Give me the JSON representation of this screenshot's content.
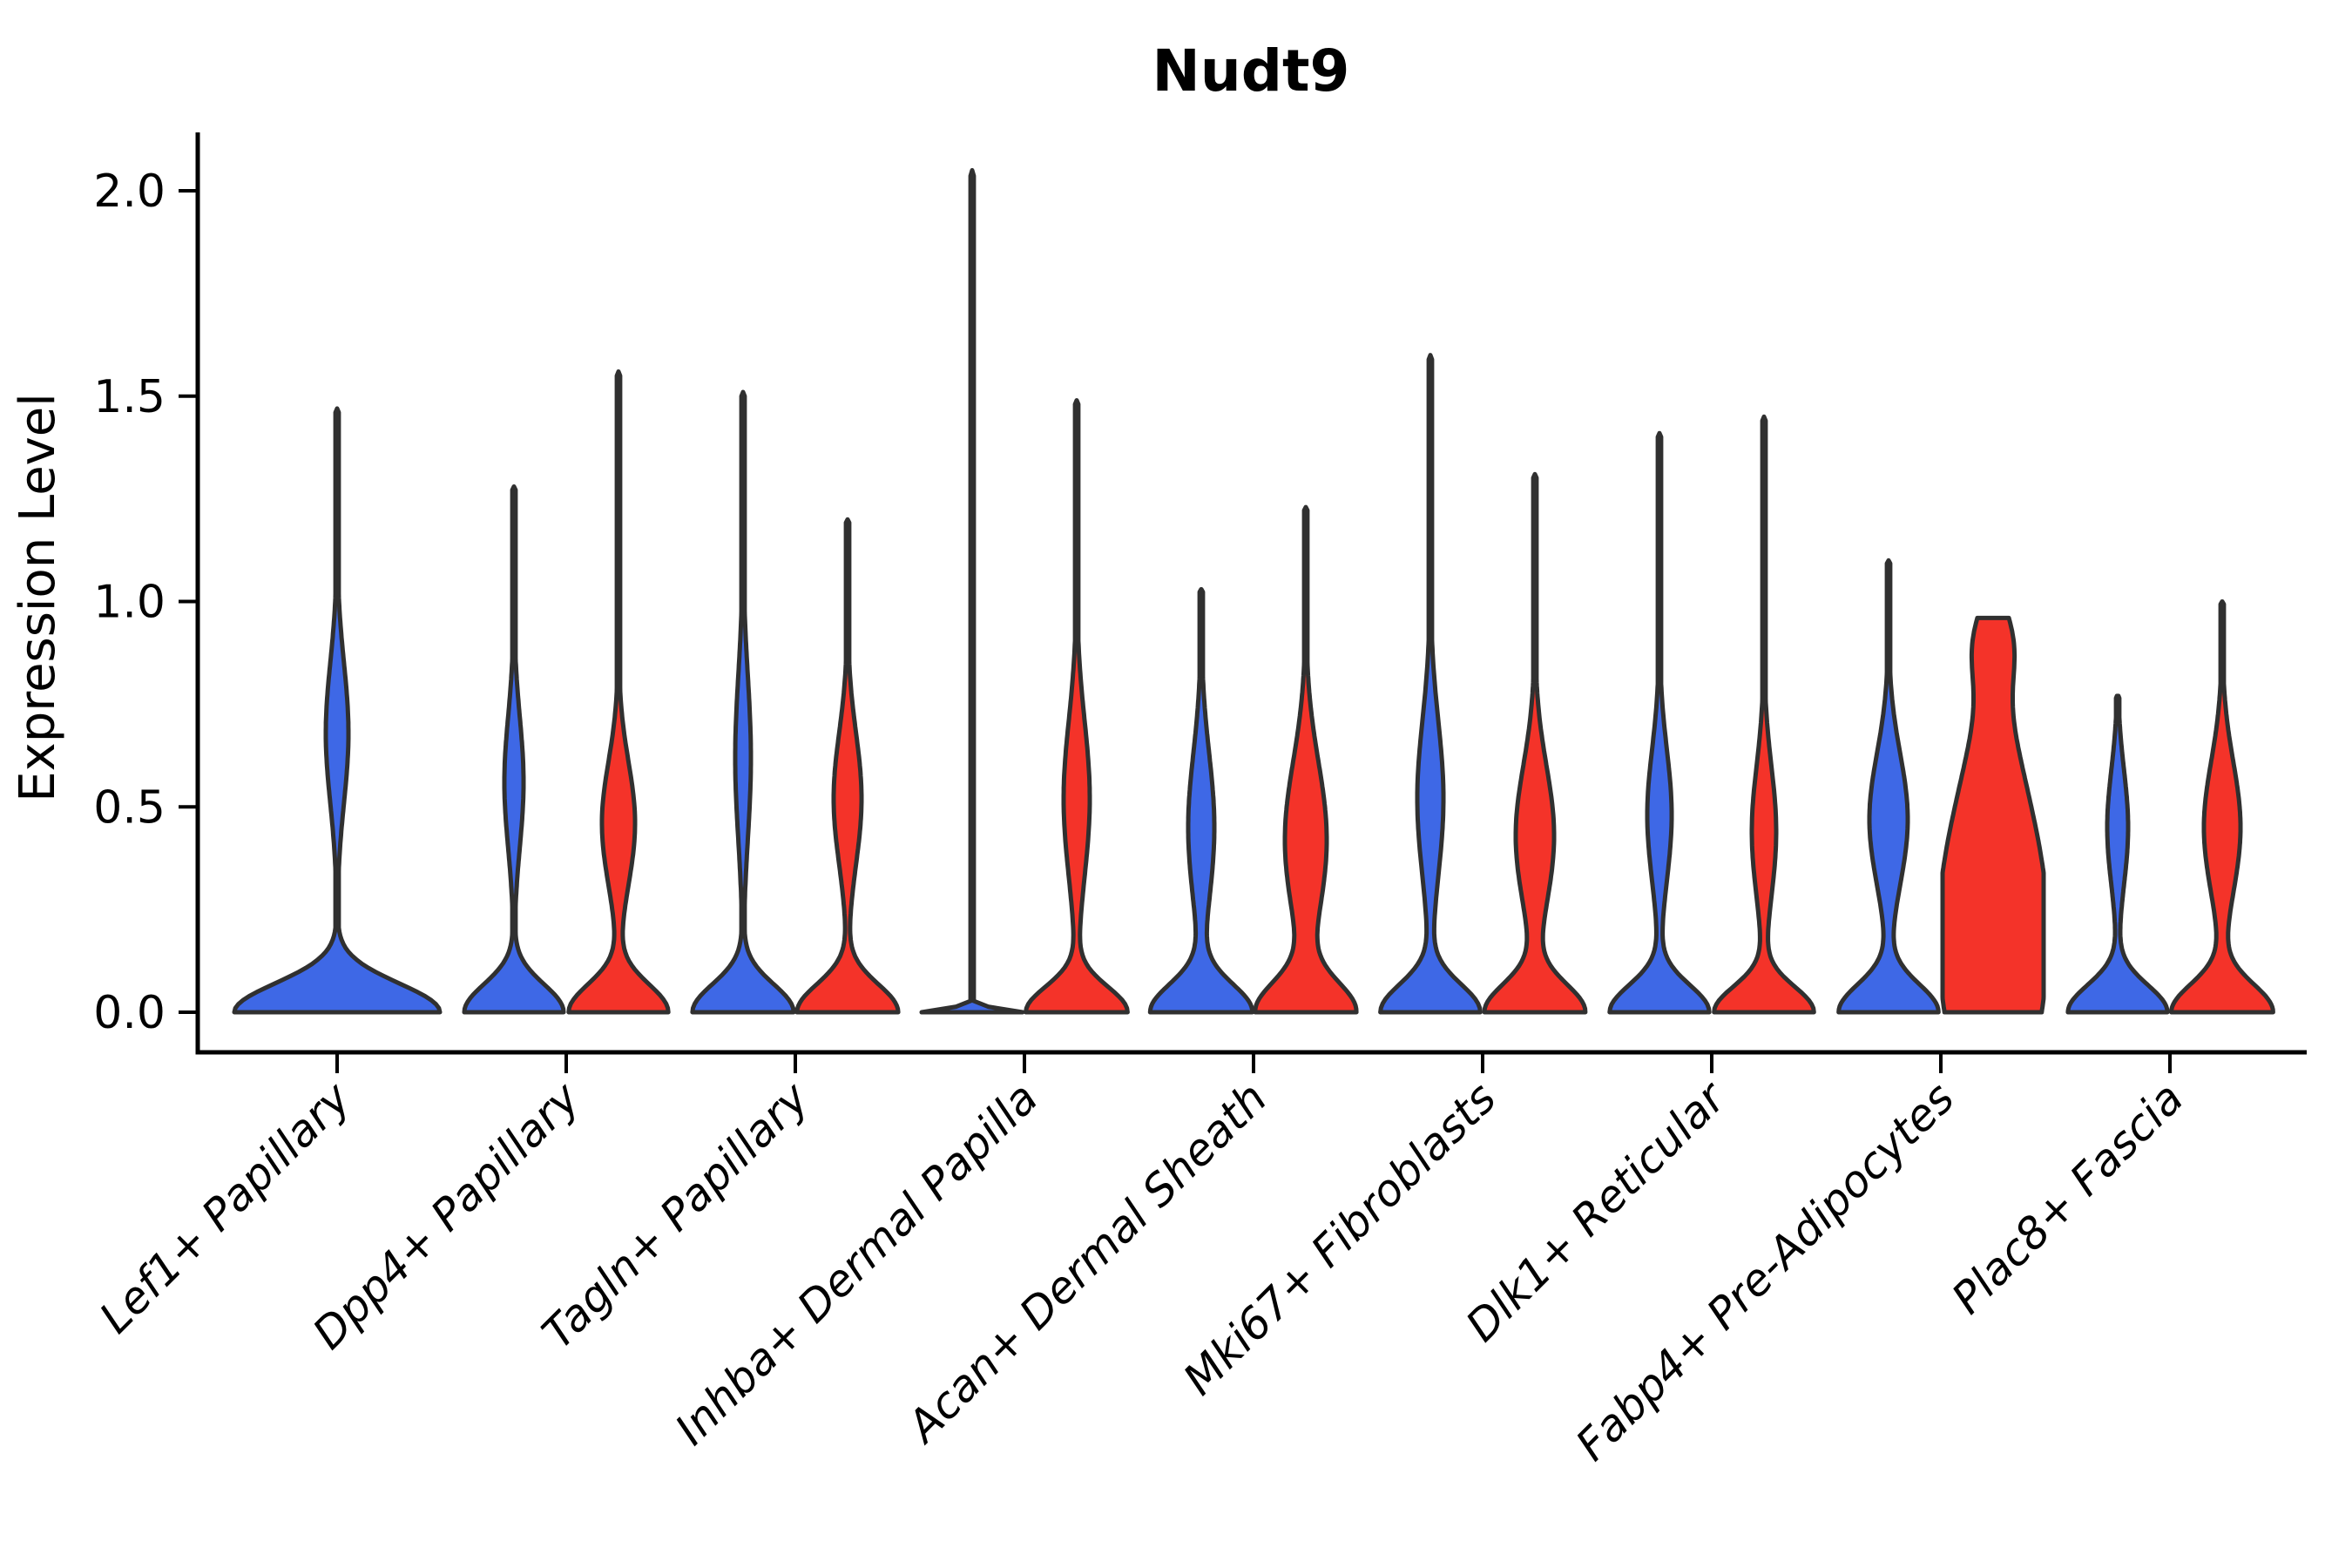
{
  "title": "Nudt9",
  "y_axis": {
    "label": "Expression Level",
    "tick_labels": [
      "0.0",
      "0.5",
      "1.0",
      "1.5",
      "2.0"
    ],
    "tick_values": [
      0.0,
      0.5,
      1.0,
      1.5,
      2.0
    ]
  },
  "x_axis": {
    "categories": [
      "Lef1+ Papillary",
      "Dpp4+ Papillary",
      "Tagln+ Papillary",
      "Inhba+ Dermal Papilla",
      "Acan+ Dermal Sheath",
      "Mki67+ Fibroblasts",
      "Dlk1+ Reticular",
      "Fabp4+ Pre-Adipocytes",
      "Plac8+ Fascia"
    ]
  },
  "colors": {
    "blue_series": "#3E68E6",
    "red_series": "#F43329",
    "outline": "#303030",
    "axis": "#000000",
    "background": "#ffffff"
  },
  "chart_data": {
    "type": "violin",
    "title": "Nudt9",
    "xlabel": "",
    "ylabel": "Expression Level",
    "ylim": [
      0,
      2.08
    ],
    "grid": false,
    "legend_position": "none",
    "categories": [
      "Lef1+ Papillary",
      "Dpp4+ Papillary",
      "Tagln+ Papillary",
      "Inhba+ Dermal Papilla",
      "Acan+ Dermal Sheath",
      "Mki67+ Fibroblasts",
      "Dlk1+ Reticular",
      "Fabp4+ Pre-Adipocytes",
      "Plac8+ Fascia"
    ],
    "series": [
      {
        "name": "blue",
        "color": "#3E68E6"
      },
      {
        "name": "red",
        "color": "#F43329"
      }
    ],
    "violins": [
      {
        "cat_index": 0,
        "category": "Lef1+ Papillary",
        "series": "blue",
        "x_offset": 0,
        "max_expression": 1.47,
        "mode_expression": 0.68,
        "zero_inflated": true,
        "bumps": [
          [
            0,
            118,
            0.07
          ],
          [
            0.68,
            13,
            0.17
          ]
        ],
        "flat_top": false
      },
      {
        "cat_index": 1,
        "category": "Dpp4+ Papillary",
        "series": "blue",
        "x_offset": -60,
        "max_expression": 1.28,
        "mode_expression": 0.56,
        "zero_inflated": true,
        "bumps": [
          [
            0,
            57,
            0.068
          ],
          [
            0.56,
            11,
            0.16
          ]
        ],
        "flat_top": false
      },
      {
        "cat_index": 1,
        "category": "Dpp4+ Papillary",
        "series": "red",
        "x_offset": 60,
        "max_expression": 1.56,
        "mode_expression": 0.46,
        "zero_inflated": true,
        "bumps": [
          [
            0,
            57,
            0.068
          ],
          [
            0.46,
            19,
            0.15
          ]
        ],
        "flat_top": false
      },
      {
        "cat_index": 2,
        "category": "Tagln+ Papillary",
        "series": "blue",
        "x_offset": -60,
        "max_expression": 1.51,
        "mode_expression": 0.62,
        "zero_inflated": true,
        "bumps": [
          [
            0,
            58,
            0.068
          ],
          [
            0.62,
            9,
            0.2
          ]
        ],
        "flat_top": false
      },
      {
        "cat_index": 2,
        "category": "Tagln+ Papillary",
        "series": "red",
        "x_offset": 60,
        "max_expression": 1.2,
        "mode_expression": 0.52,
        "zero_inflated": true,
        "bumps": [
          [
            0,
            58,
            0.068
          ],
          [
            0.52,
            16,
            0.16
          ]
        ],
        "flat_top": false
      },
      {
        "cat_index": 3,
        "category": "Inhba+ Dermal Papilla",
        "series": "blue",
        "x_offset": -60,
        "max_expression": 2.05,
        "mode_expression": 0.0,
        "zero_inflated": true,
        "degenerate_spike": true,
        "bumps": [
          [
            0,
            58,
            0.009
          ]
        ],
        "flat_top": false
      },
      {
        "cat_index": 3,
        "category": "Inhba+ Dermal Papilla",
        "series": "red",
        "x_offset": 60,
        "max_expression": 1.49,
        "mode_expression": 0.52,
        "zero_inflated": true,
        "bumps": [
          [
            0,
            58,
            0.062
          ],
          [
            0.52,
            15,
            0.19
          ]
        ],
        "flat_top": false
      },
      {
        "cat_index": 4,
        "category": "Acan+ Dermal Sheath",
        "series": "blue",
        "x_offset": -60,
        "max_expression": 1.03,
        "mode_expression": 0.45,
        "zero_inflated": true,
        "bumps": [
          [
            0,
            58,
            0.068
          ],
          [
            0.45,
            15,
            0.18
          ]
        ],
        "flat_top": false
      },
      {
        "cat_index": 4,
        "category": "Acan+ Dermal Sheath",
        "series": "red",
        "x_offset": 60,
        "max_expression": 1.23,
        "mode_expression": 0.42,
        "zero_inflated": true,
        "bumps": [
          [
            0,
            56,
            0.072
          ],
          [
            0.42,
            24,
            0.19
          ]
        ],
        "flat_top": false
      },
      {
        "cat_index": 5,
        "category": "Mki67+ Fibroblasts",
        "series": "blue",
        "x_offset": -60,
        "max_expression": 1.6,
        "mode_expression": 0.52,
        "zero_inflated": true,
        "bumps": [
          [
            0,
            57,
            0.068
          ],
          [
            0.52,
            15,
            0.19
          ]
        ],
        "flat_top": false
      },
      {
        "cat_index": 5,
        "category": "Mki67+ Fibroblasts",
        "series": "red",
        "x_offset": 60,
        "max_expression": 1.31,
        "mode_expression": 0.43,
        "zero_inflated": true,
        "bumps": [
          [
            0,
            57,
            0.068
          ],
          [
            0.43,
            22,
            0.17
          ]
        ],
        "flat_top": false
      },
      {
        "cat_index": 6,
        "category": "Dlk1+ Reticular",
        "series": "blue",
        "x_offset": -60,
        "max_expression": 1.41,
        "mode_expression": 0.48,
        "zero_inflated": true,
        "bumps": [
          [
            0,
            57,
            0.066
          ],
          [
            0.48,
            14,
            0.16
          ]
        ],
        "flat_top": false
      },
      {
        "cat_index": 6,
        "category": "Dlk1+ Reticular",
        "series": "red",
        "x_offset": 60,
        "max_expression": 1.45,
        "mode_expression": 0.44,
        "zero_inflated": true,
        "bumps": [
          [
            0,
            57,
            0.062
          ],
          [
            0.44,
            14,
            0.16
          ]
        ],
        "flat_top": false
      },
      {
        "cat_index": 7,
        "category": "Fabp4+ Pre-Adipocytes",
        "series": "blue",
        "x_offset": -60,
        "max_expression": 1.1,
        "mode_expression": 0.47,
        "zero_inflated": true,
        "bumps": [
          [
            0,
            57,
            0.068
          ],
          [
            0.47,
            22,
            0.16
          ]
        ],
        "flat_top": false
      },
      {
        "cat_index": 7,
        "category": "Fabp4+ Pre-Adipocytes",
        "series": "red",
        "x_offset": 60,
        "max_expression": 0.96,
        "mode_expression": 0.3,
        "zero_inflated": true,
        "truncated_top": true,
        "bumps": [
          [
            0,
            30,
            0.36
          ],
          [
            0.3,
            39,
            0.33
          ],
          [
            0.9,
            15,
            0.09
          ]
        ],
        "cap": 58,
        "flat_top": true
      },
      {
        "cat_index": 8,
        "category": "Plac8+ Fascia",
        "series": "blue",
        "x_offset": -60,
        "max_expression": 0.77,
        "mode_expression": 0.45,
        "zero_inflated": true,
        "bumps": [
          [
            0,
            57,
            0.066
          ],
          [
            0.45,
            12,
            0.14
          ]
        ],
        "flat_top": false
      },
      {
        "cat_index": 8,
        "category": "Plac8+ Fascia",
        "series": "red",
        "x_offset": 60,
        "max_expression": 1.0,
        "mode_expression": 0.45,
        "zero_inflated": true,
        "bumps": [
          [
            0,
            58,
            0.068
          ],
          [
            0.45,
            21,
            0.16
          ]
        ],
        "flat_top": false
      }
    ]
  }
}
